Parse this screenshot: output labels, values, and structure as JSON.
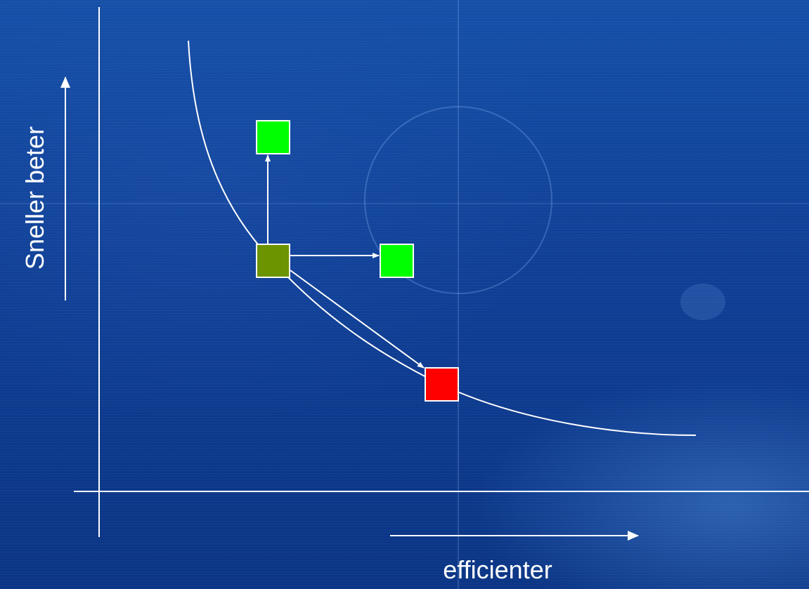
{
  "labels": {
    "y_axis": "Sneller beter",
    "x_axis": "efficienter"
  },
  "colors": {
    "background": "#0f3f95",
    "lines": "#ffffff",
    "current_node": "#6b9400",
    "good_node": "#00ff00",
    "bad_node": "#ff0000"
  }
}
